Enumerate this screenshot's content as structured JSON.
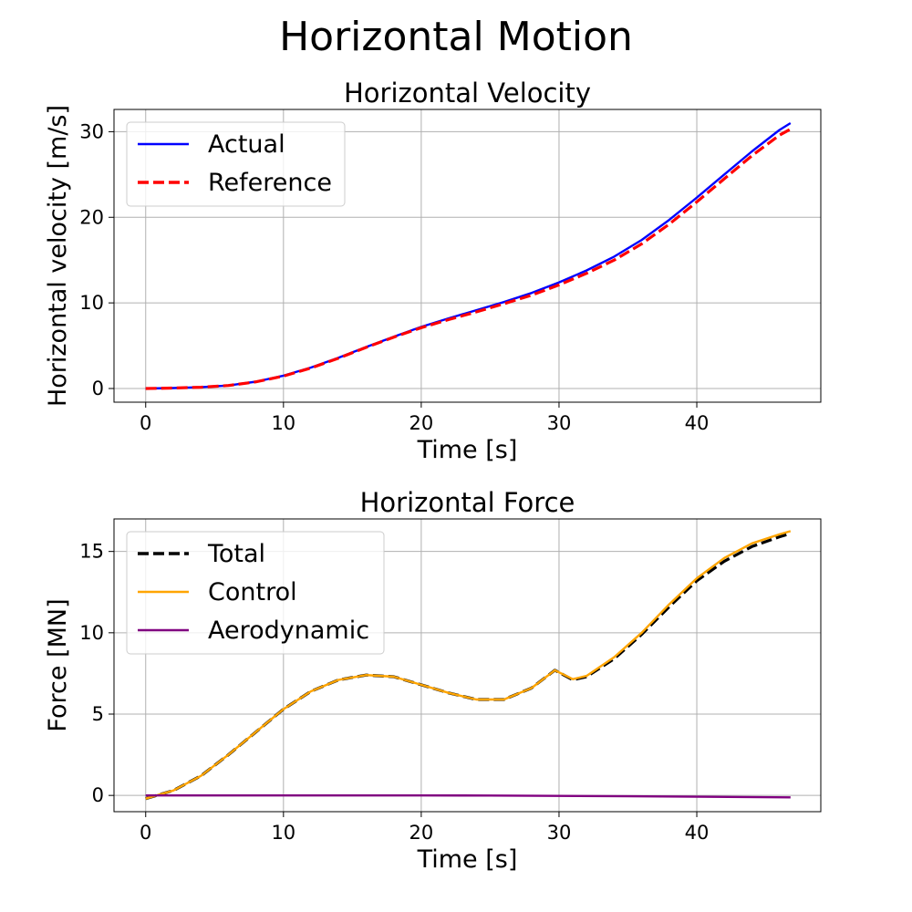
{
  "figure": {
    "title": "Horizontal Motion"
  },
  "chart_data": [
    {
      "type": "line",
      "title": "Horizontal Velocity",
      "xlabel": "Time [s]",
      "ylabel": "Horizontal velocity [m/s]",
      "xlim": [
        -2.3,
        49.0
      ],
      "ylim": [
        -1.6,
        32.6
      ],
      "xticks": [
        0,
        10,
        20,
        30,
        40
      ],
      "yticks": [
        0,
        10,
        20,
        30
      ],
      "grid": true,
      "legend": "top-left",
      "series": [
        {
          "name": "Actual",
          "color": "#0000ff",
          "dash": "solid",
          "x": [
            0,
            2,
            4,
            6,
            8,
            10,
            12,
            14,
            16,
            18,
            20,
            22,
            24,
            26,
            28,
            30,
            32,
            34,
            36,
            38,
            40,
            42,
            44,
            46,
            46.8
          ],
          "y": [
            0,
            0.05,
            0.15,
            0.35,
            0.8,
            1.5,
            2.45,
            3.6,
            4.85,
            6.05,
            7.2,
            8.2,
            9.15,
            10.1,
            11.15,
            12.4,
            13.8,
            15.4,
            17.35,
            19.7,
            22.3,
            25.0,
            27.7,
            30.2,
            31.0
          ]
        },
        {
          "name": "Reference",
          "color": "#ff0000",
          "dash": "dashed",
          "x": [
            0,
            2,
            4,
            6,
            8,
            10,
            12,
            14,
            16,
            18,
            20,
            22,
            24,
            26,
            28,
            30,
            32,
            34,
            36,
            38,
            40,
            42,
            44,
            46,
            46.8
          ],
          "y": [
            0,
            0.05,
            0.15,
            0.35,
            0.78,
            1.45,
            2.4,
            3.55,
            4.8,
            6.0,
            7.1,
            8.05,
            8.95,
            9.9,
            10.9,
            12.1,
            13.45,
            15.0,
            16.9,
            19.2,
            21.8,
            24.5,
            27.2,
            29.6,
            30.3
          ]
        }
      ]
    },
    {
      "type": "line",
      "title": "Horizontal Force",
      "xlabel": "Time [s]",
      "ylabel": "Force [MN]",
      "xlim": [
        -2.3,
        49.0
      ],
      "ylim": [
        -1.0,
        17.0
      ],
      "xticks": [
        0,
        10,
        20,
        30,
        40
      ],
      "yticks": [
        0,
        5,
        10,
        15
      ],
      "grid": true,
      "legend": "top-left",
      "series": [
        {
          "name": "Total",
          "color": "#000000",
          "dash": "dashed",
          "x": [
            0,
            2,
            4,
            6,
            8,
            10,
            12,
            14,
            16,
            18,
            20,
            22,
            24,
            26,
            28,
            29.7,
            31,
            32,
            34,
            36,
            38,
            40,
            42,
            44,
            46,
            46.8
          ],
          "y": [
            -0.2,
            0.3,
            1.2,
            2.5,
            3.9,
            5.3,
            6.4,
            7.1,
            7.4,
            7.3,
            6.8,
            6.3,
            5.9,
            5.9,
            6.6,
            7.7,
            7.1,
            7.3,
            8.4,
            9.9,
            11.6,
            13.2,
            14.4,
            15.3,
            15.9,
            16.1
          ]
        },
        {
          "name": "Control",
          "color": "#ffa500",
          "dash": "solid",
          "x": [
            0,
            2,
            4,
            6,
            8,
            10,
            12,
            14,
            16,
            18,
            20,
            22,
            24,
            26,
            28,
            29.7,
            31,
            32,
            34,
            36,
            38,
            40,
            42,
            44,
            46,
            46.8
          ],
          "y": [
            -0.2,
            0.3,
            1.2,
            2.5,
            3.9,
            5.3,
            6.4,
            7.1,
            7.4,
            7.3,
            6.8,
            6.3,
            5.9,
            5.9,
            6.6,
            7.7,
            7.15,
            7.35,
            8.5,
            10.0,
            11.75,
            13.35,
            14.6,
            15.5,
            16.05,
            16.25
          ]
        },
        {
          "name": "Aerodynamic",
          "color": "#800080",
          "dash": "solid",
          "x": [
            0,
            10,
            20,
            25,
            30,
            35,
            40,
            46.8
          ],
          "y": [
            0,
            0,
            0,
            -0.01,
            -0.03,
            -0.05,
            -0.08,
            -0.12
          ]
        }
      ]
    }
  ]
}
